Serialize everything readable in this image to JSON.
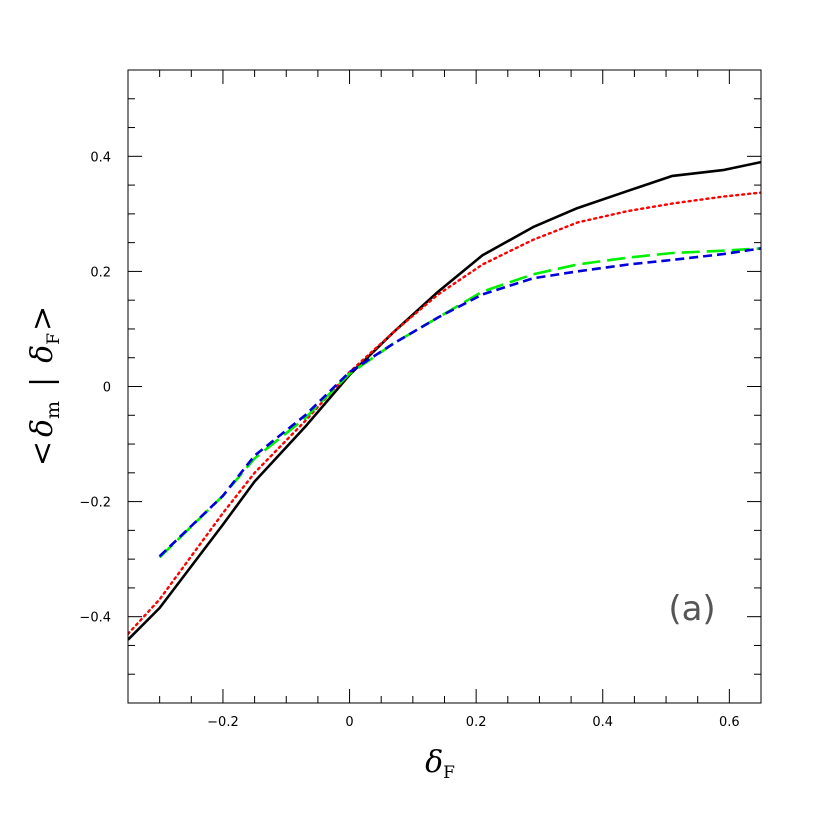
{
  "chart_data": {
    "type": "line",
    "title": "",
    "xlabel": {
      "symbol": "δ",
      "sub": "F"
    },
    "ylabel": {
      "open": "<",
      "symbol": "δ",
      "sub1": "m",
      "bar": "|",
      "symbol2": "δ",
      "sub2": "F",
      "close": ">"
    },
    "panel_label": "(a)",
    "xlim": [
      -0.35,
      0.65
    ],
    "ylim": [
      -0.55,
      0.55
    ],
    "xticks": [
      -0.2,
      0,
      0.2,
      0.4,
      0.6
    ],
    "xtick_labels": [
      "−0.2",
      "0",
      "0.2",
      "0.4",
      "0.6"
    ],
    "yticks": [
      -0.4,
      -0.2,
      0,
      0.2,
      0.4
    ],
    "ytick_labels": [
      "−0.4",
      "−0.2",
      "0",
      "0.2",
      "0.4"
    ],
    "x_minor_step": 0.05,
    "y_minor_step": 0.05,
    "grid": false,
    "series": [
      {
        "color": "#000000",
        "style": "solid",
        "x": [
          -0.35,
          -0.3,
          -0.2,
          -0.15,
          -0.07,
          0.0,
          0.07,
          0.14,
          0.21,
          0.29,
          0.36,
          0.44,
          0.51,
          0.59,
          0.65
        ],
        "y": [
          -0.44,
          -0.385,
          -0.24,
          -0.165,
          -0.07,
          0.02,
          0.095,
          0.165,
          0.228,
          0.277,
          0.31,
          0.34,
          0.366,
          0.376,
          0.39
        ]
      },
      {
        "color": "#ff0000",
        "style": "dotted",
        "x": [
          -0.35,
          -0.3,
          -0.2,
          -0.15,
          -0.07,
          0.0,
          0.07,
          0.14,
          0.21,
          0.29,
          0.36,
          0.44,
          0.51,
          0.59,
          0.65
        ],
        "y": [
          -0.43,
          -0.37,
          -0.22,
          -0.15,
          -0.06,
          0.025,
          0.095,
          0.16,
          0.212,
          0.255,
          0.285,
          0.305,
          0.318,
          0.33,
          0.337
        ]
      },
      {
        "color": "#00ee00",
        "style": "long-dash",
        "x": [
          -0.3,
          -0.2,
          -0.15,
          -0.07,
          0.0,
          0.07,
          0.14,
          0.21,
          0.29,
          0.36,
          0.44,
          0.51,
          0.59,
          0.65
        ],
        "y": [
          -0.297,
          -0.19,
          -0.125,
          -0.055,
          0.022,
          0.075,
          0.12,
          0.165,
          0.195,
          0.212,
          0.224,
          0.232,
          0.236,
          0.24
        ]
      },
      {
        "color": "#0000dd",
        "style": "short-dash",
        "x": [
          -0.3,
          -0.2,
          -0.15,
          -0.07,
          0.0,
          0.07,
          0.14,
          0.21,
          0.29,
          0.36,
          0.44,
          0.51,
          0.59,
          0.65
        ],
        "y": [
          -0.295,
          -0.19,
          -0.12,
          -0.05,
          0.025,
          0.075,
          0.12,
          0.16,
          0.188,
          0.2,
          0.212,
          0.22,
          0.23,
          0.24
        ]
      }
    ]
  }
}
